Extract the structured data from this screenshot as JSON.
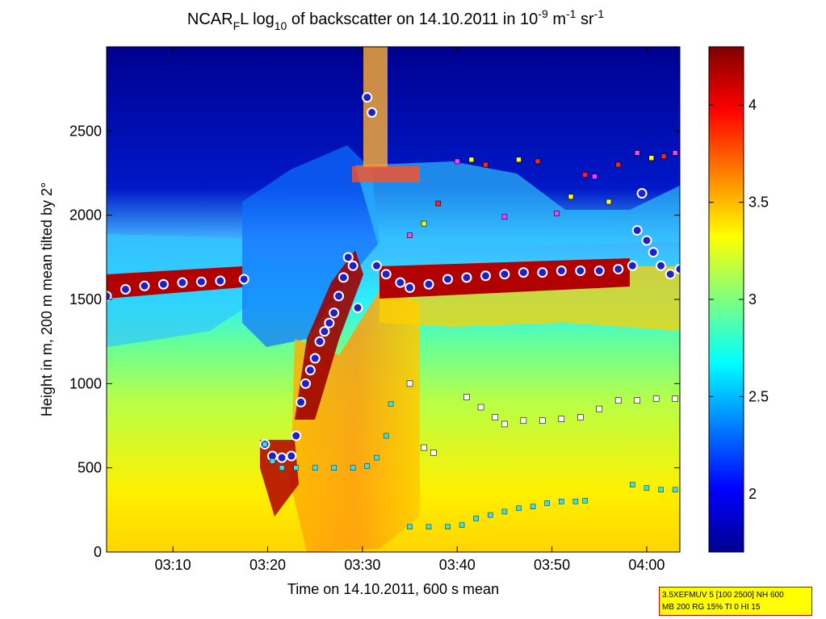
{
  "chart_data": {
    "type": "heatmap",
    "title": {
      "pre": "NCAR",
      "sub1": "F",
      "mid": "L log",
      "sub2": "10",
      "post": " of backscatter on 14.10.2011 in 10",
      "sup1": "-9",
      "unit1": " m",
      "sup2": "-1",
      "unit2": " sr",
      "sup3": "-1"
    },
    "xlabel": "Time on 14.10.2011, 600 s mean",
    "ylabel": "Height in m, 200 m mean tilted by 2°",
    "xlim_minutes": [
      183,
      243.5
    ],
    "ylim": [
      0,
      3000
    ],
    "xticks": [
      {
        "minute": 190,
        "label": "03:10"
      },
      {
        "minute": 200,
        "label": "03:20"
      },
      {
        "minute": 210,
        "label": "03:30"
      },
      {
        "minute": 220,
        "label": "03:40"
      },
      {
        "minute": 230,
        "label": "03:50"
      },
      {
        "minute": 240,
        "label": "04:00"
      }
    ],
    "yticks": [
      0,
      500,
      1000,
      1500,
      2000,
      2500
    ],
    "colorbar": {
      "range": [
        1.7,
        4.3
      ],
      "ticks": [
        2,
        2.5,
        3,
        3.5,
        4
      ],
      "tick_labels": [
        "2",
        "2.5",
        "3",
        "3.5",
        "4"
      ]
    },
    "boundary_layer_top": [
      [
        183.0,
        1520
      ],
      [
        185.0,
        1560
      ],
      [
        187.0,
        1580
      ],
      [
        189.0,
        1590
      ],
      [
        191.0,
        1600
      ],
      [
        193.0,
        1605
      ],
      [
        195.0,
        1610
      ],
      [
        197.5,
        1620
      ],
      [
        199.7,
        640
      ],
      [
        200.5,
        570
      ],
      [
        201.5,
        560
      ],
      [
        202.5,
        570
      ],
      [
        203.0,
        690
      ],
      [
        203.5,
        890
      ],
      [
        204.0,
        1000
      ],
      [
        204.5,
        1080
      ],
      [
        205.0,
        1150
      ],
      [
        205.5,
        1250
      ],
      [
        206.0,
        1310
      ],
      [
        206.5,
        1360
      ],
      [
        207.0,
        1420
      ],
      [
        207.5,
        1520
      ],
      [
        208.0,
        1630
      ],
      [
        208.5,
        1750
      ],
      [
        209.0,
        1700
      ],
      [
        209.5,
        1450
      ],
      [
        210.5,
        2700
      ],
      [
        211.0,
        2610
      ],
      [
        211.5,
        1700
      ],
      [
        212.5,
        1650
      ],
      [
        214.0,
        1600
      ],
      [
        215.0,
        1570
      ],
      [
        217.0,
        1590
      ],
      [
        219.0,
        1620
      ],
      [
        221.0,
        1630
      ],
      [
        223.0,
        1640
      ],
      [
        225.0,
        1650
      ],
      [
        227.0,
        1660
      ],
      [
        229.0,
        1660
      ],
      [
        231.0,
        1670
      ],
      [
        233.0,
        1670
      ],
      [
        235.0,
        1670
      ],
      [
        237.0,
        1680
      ],
      [
        238.5,
        1700
      ],
      [
        239.0,
        1910
      ],
      [
        239.5,
        2130
      ],
      [
        240.0,
        1850
      ],
      [
        240.7,
        1780
      ],
      [
        241.5,
        1700
      ],
      [
        242.5,
        1650
      ],
      [
        243.5,
        1680
      ]
    ],
    "upper_layer_markers": [
      [
        215.0,
        1880
      ],
      [
        216.5,
        1950
      ],
      [
        218.0,
        2070
      ],
      [
        220.0,
        2320
      ],
      [
        221.5,
        2330
      ],
      [
        223.0,
        2300
      ],
      [
        225.0,
        1990
      ],
      [
        226.5,
        2330
      ],
      [
        228.5,
        2320
      ],
      [
        230.5,
        2010
      ],
      [
        232.0,
        2110
      ],
      [
        233.5,
        2240
      ],
      [
        234.5,
        2230
      ],
      [
        236.0,
        2080
      ],
      [
        237.0,
        2300
      ],
      [
        239.0,
        2370
      ],
      [
        240.5,
        2340
      ],
      [
        241.8,
        2350
      ],
      [
        243.0,
        2370
      ]
    ],
    "mid_layer_markers": [
      [
        215.0,
        1000
      ],
      [
        216.5,
        620
      ],
      [
        217.5,
        590
      ],
      [
        221.0,
        920
      ],
      [
        222.5,
        860
      ],
      [
        224.0,
        800
      ],
      [
        225.0,
        760
      ],
      [
        227.0,
        780
      ],
      [
        229.0,
        780
      ],
      [
        231.0,
        790
      ],
      [
        233.0,
        800
      ],
      [
        235.0,
        850
      ],
      [
        237.0,
        900
      ],
      [
        239.0,
        900
      ],
      [
        241.0,
        910
      ],
      [
        243.0,
        910
      ]
    ],
    "cyan_layer_markers": [
      [
        199.7,
        640
      ],
      [
        200.5,
        540
      ],
      [
        201.5,
        500
      ],
      [
        203.0,
        500
      ],
      [
        205.0,
        500
      ],
      [
        207.0,
        500
      ],
      [
        209.0,
        500
      ],
      [
        210.5,
        510
      ],
      [
        211.5,
        560
      ],
      [
        212.5,
        690
      ],
      [
        213.0,
        880
      ],
      [
        215.0,
        150
      ],
      [
        217.0,
        150
      ],
      [
        219.0,
        150
      ],
      [
        220.5,
        160
      ],
      [
        222.0,
        200
      ],
      [
        223.5,
        220
      ],
      [
        225.0,
        240
      ],
      [
        226.5,
        260
      ],
      [
        228.0,
        270
      ],
      [
        229.5,
        290
      ],
      [
        231.0,
        300
      ],
      [
        232.5,
        300
      ],
      [
        233.5,
        305
      ],
      [
        238.5,
        400
      ],
      [
        240.0,
        380
      ],
      [
        241.5,
        370
      ],
      [
        243.0,
        370
      ]
    ]
  },
  "info_box": {
    "line1": "3.5XEFMUV 5 [100 2500] NH 600",
    "line2": "MB 200 RG 15% TI 0 HI 15"
  }
}
